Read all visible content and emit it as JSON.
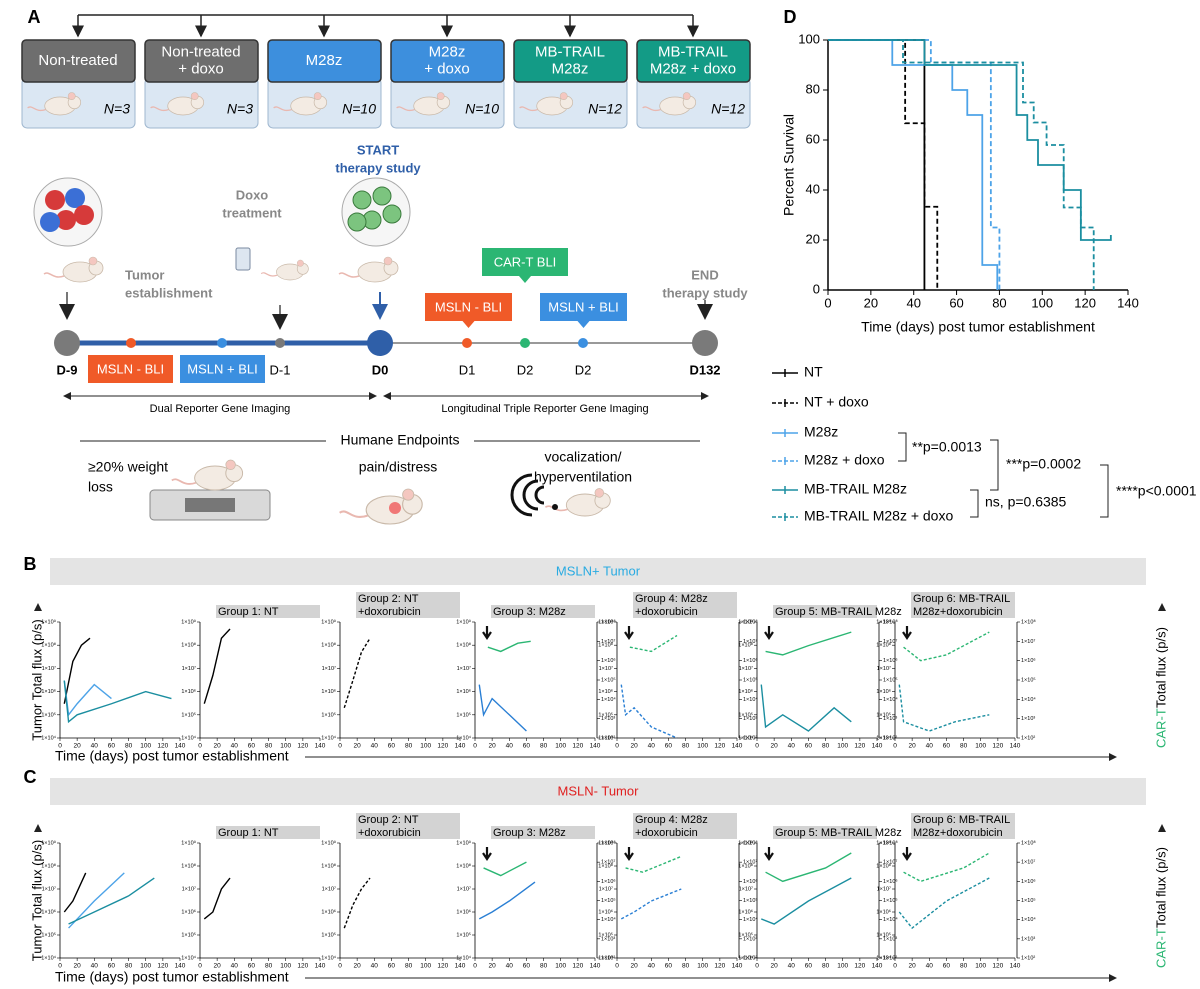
{
  "panel_labels": [
    "A",
    "B",
    "C",
    "D"
  ],
  "panel_a": {
    "groups": [
      {
        "name": [
          "Non-treated"
        ],
        "n": "N=3",
        "color": "#6e6e6e"
      },
      {
        "name": [
          "Non-treated",
          "+ doxo"
        ],
        "n": "N=3",
        "color": "#6e6e6e"
      },
      {
        "name": [
          "M28z"
        ],
        "n": "N=10",
        "color": "#3d8fdd"
      },
      {
        "name": [
          "M28z",
          "+ doxo"
        ],
        "n": "N=10",
        "color": "#3d8fdd"
      },
      {
        "name": [
          "MB-TRAIL",
          "M28z"
        ],
        "n": "N=12",
        "color": "#139b86"
      },
      {
        "name": [
          "MB-TRAIL",
          "M28z + doxo"
        ],
        "n": "N=12",
        "color": "#139b86"
      }
    ],
    "timepoints": [
      "D-9",
      "D-1",
      "D0",
      "D1",
      "D2",
      "D2",
      "D132"
    ],
    "events": {
      "tumor": [
        "Tumor",
        "establishment"
      ],
      "doxo": [
        "Doxo",
        "treatment"
      ],
      "start": [
        "START",
        "therapy study"
      ],
      "end": [
        "END",
        "therapy study"
      ]
    },
    "bli": {
      "msln_neg_pre": "MSLN - BLI",
      "msln_pos_pre": "MSLN + BLI",
      "cart": "CAR-T BLI",
      "msln_neg_post": "MSLN - BLI",
      "msln_pos_post": "MSLN + BLI"
    },
    "phases": [
      "Dual Reporter Gene Imaging",
      "Longitudinal Triple Reporter Gene Imaging"
    ],
    "endpoints": {
      "title": "Humane Endpoints",
      "items": [
        [
          "≥20% weight",
          "loss"
        ],
        [
          "pain/distress"
        ],
        [
          "vocalization/",
          "hyperventilation"
        ]
      ]
    }
  },
  "chart_data": [
    {
      "type": "step",
      "xlabel": "Time (days) post tumor establishment",
      "ylabel": "Percent Survival",
      "xlim": [
        0,
        140
      ],
      "xticks": [
        0,
        20,
        40,
        60,
        80,
        100,
        120,
        140
      ],
      "ylim": [
        0,
        100
      ],
      "yticks": [
        0,
        20,
        40,
        60,
        80,
        100
      ],
      "series": [
        {
          "name": "NT",
          "color": "#000000",
          "dash": false,
          "x": [
            0,
            45
          ],
          "values": [
            100,
            0
          ]
        },
        {
          "name": "NT + doxo",
          "color": "#000000",
          "dash": true,
          "x": [
            0,
            36,
            45,
            51
          ],
          "values": [
            100,
            66.7,
            33.3,
            0
          ]
        },
        {
          "name": "M28z",
          "color": "#4da3e8",
          "dash": false,
          "x": [
            0,
            30,
            58,
            65,
            72,
            79
          ],
          "values": [
            100,
            90,
            80,
            70,
            10,
            0
          ]
        },
        {
          "name": "M28z + doxo",
          "color": "#4da3e8",
          "dash": true,
          "x": [
            0,
            48,
            76,
            80
          ],
          "values": [
            100,
            91,
            25,
            0
          ]
        },
        {
          "name": "MB-TRAIL M28z",
          "color": "#1b8ea0",
          "dash": false,
          "x": [
            0,
            45,
            88,
            93,
            98,
            110,
            118,
            132
          ],
          "values": [
            100,
            90,
            70,
            60,
            50,
            40,
            20,
            22
          ]
        },
        {
          "name": "MB-TRAIL M28z + doxo",
          "color": "#1b8ea0",
          "dash": true,
          "x": [
            0,
            35,
            91,
            96,
            102,
            110,
            118,
            124
          ],
          "values": [
            100,
            91,
            75,
            67,
            58,
            33,
            25,
            0
          ]
        }
      ],
      "annotations": [
        "**p=0.0013",
        "***p=0.0002",
        "ns, p=0.6385",
        "****p<0.0001"
      ]
    },
    {
      "type": "small_multiples",
      "banner": "MSLN+ Tumor",
      "banner_color": "#29abe2",
      "ylabel": "Tumor Total flux (p/s)",
      "y2label": [
        "CAR-T",
        "Total flux (p/s)"
      ],
      "xlabel": "Time (days) post tumor establishment",
      "log_scale": true,
      "xlim": [
        0,
        140
      ],
      "xticks": [
        0,
        20,
        40,
        60,
        80,
        100,
        120,
        140
      ],
      "ylim": [
        10000,
        1000000000
      ],
      "yticks": [
        {
          "value": 10000,
          "label": "1×10⁴"
        },
        {
          "value": 100000,
          "label": "1×10⁵"
        },
        {
          "value": 1000000,
          "label": "1×10⁶"
        },
        {
          "value": 10000000,
          "label": "1×10⁷"
        },
        {
          "value": 100000000,
          "label": "1×10⁸"
        },
        {
          "value": 1000000000,
          "label": "1×10⁹"
        }
      ],
      "y2lim": [
        100,
        100000000
      ],
      "y2ticks": [
        {
          "value": 100,
          "label": "1×10²"
        },
        {
          "value": 1000,
          "label": "1×10³"
        },
        {
          "value": 10000,
          "label": "1×10⁴"
        },
        {
          "value": 100000,
          "label": "1×10⁵"
        },
        {
          "value": 1000000,
          "label": "1×10⁶"
        },
        {
          "value": 10000000,
          "label": "1×10⁷"
        },
        {
          "value": 100000000,
          "label": "1×10⁸"
        }
      ],
      "panels": [
        {
          "title": null,
          "series": [
            {
              "color": "#000000",
              "dash": false,
              "x": [
                5,
                15,
                25,
                35
              ],
              "values": [
                300000,
                20000000,
                100000000,
                200000000
              ]
            },
            {
              "color": "#4da3e8",
              "dash": false,
              "x": [
                5,
                10,
                20,
                40,
                60
              ],
              "values": [
                3000000,
                100000,
                300000,
                2000000,
                500000
              ]
            },
            {
              "color": "#1b8ea0",
              "dash": false,
              "x": [
                5,
                10,
                20,
                60,
                100,
                130
              ],
              "values": [
                3000000,
                50000,
                100000,
                300000,
                1000000,
                500000
              ]
            }
          ]
        },
        {
          "title": [
            "Group 1: NT"
          ],
          "series": [
            {
              "color": "#000000",
              "dash": false,
              "x": [
                5,
                15,
                25,
                35
              ],
              "values": [
                300000,
                5000000,
                200000000,
                500000000
              ]
            }
          ]
        },
        {
          "title": [
            "Group 2: NT",
            "+doxorubicin"
          ],
          "series": [
            {
              "color": "#000000",
              "dash": true,
              "x": [
                5,
                15,
                25,
                35
              ],
              "values": [
                200000,
                3000000,
                50000000,
                200000000
              ]
            }
          ]
        },
        {
          "title": [
            "Group 3: M28z"
          ],
          "series": [
            {
              "color": "#2a7fd4",
              "dash": false,
              "x": [
                5,
                10,
                20,
                40,
                60
              ],
              "values": [
                2000000,
                100000,
                500000,
                100000,
                20000
              ]
            },
            {
              "color": "#2bb673",
              "dash": false,
              "axis": "y2",
              "x": [
                15,
                30,
                50,
                65
              ],
              "values": [
                5000000,
                3000000,
                8000000,
                10000000
              ]
            }
          ]
        },
        {
          "title": [
            "Group 4: M28z",
            "+doxorubicin"
          ],
          "series": [
            {
              "color": "#2a7fd4",
              "dash": true,
              "x": [
                5,
                10,
                20,
                40,
                70
              ],
              "values": [
                2000000,
                100000,
                200000,
                30000,
                10000
              ]
            },
            {
              "color": "#2bb673",
              "dash": true,
              "axis": "y2",
              "x": [
                15,
                40,
                70
              ],
              "values": [
                5000000,
                3000000,
                20000000
              ]
            }
          ]
        },
        {
          "title": [
            "Group 5: MB-TRAIL M28z"
          ],
          "series": [
            {
              "color": "#1b8ea0",
              "dash": false,
              "x": [
                5,
                10,
                30,
                60,
                90,
                110
              ],
              "values": [
                2000000,
                30000,
                100000,
                20000,
                200000,
                50000
              ]
            },
            {
              "color": "#2bb673",
              "dash": false,
              "axis": "y2",
              "x": [
                10,
                30,
                60,
                110
              ],
              "values": [
                3000000,
                2000000,
                6000000,
                30000000
              ]
            }
          ]
        },
        {
          "title": [
            "Group 6: MB-TRAIL",
            "M28z+doxorubicin"
          ],
          "series": [
            {
              "color": "#1b8ea0",
              "dash": true,
              "x": [
                5,
                10,
                40,
                70,
                110
              ],
              "values": [
                2000000,
                50000,
                20000,
                50000,
                100000
              ]
            },
            {
              "color": "#2bb673",
              "dash": true,
              "axis": "y2",
              "x": [
                10,
                30,
                60,
                110
              ],
              "values": [
                5000000,
                1000000,
                2000000,
                30000000
              ]
            }
          ]
        }
      ]
    },
    {
      "type": "small_multiples",
      "banner": "MSLN- Tumor",
      "banner_color": "#e02020",
      "ylabel": "Tumor Total flux (p/s)",
      "y2label": [
        "CAR-T",
        "Total flux (p/s)"
      ],
      "xlabel": "Time (days) post tumor establishment",
      "log_scale": true,
      "xlim": [
        0,
        140
      ],
      "xticks": [
        0,
        20,
        40,
        60,
        80,
        100,
        120,
        140
      ],
      "ylim": [
        10000,
        1000000000
      ],
      "yticks": [
        {
          "value": 10000,
          "label": "1×10⁴"
        },
        {
          "value": 100000,
          "label": "1×10⁵"
        },
        {
          "value": 1000000,
          "label": "1×10⁶"
        },
        {
          "value": 10000000,
          "label": "1×10⁷"
        },
        {
          "value": 100000000,
          "label": "1×10⁸"
        },
        {
          "value": 1000000000,
          "label": "1×10⁹"
        }
      ],
      "y2lim": [
        100,
        100000000
      ],
      "y2ticks": [
        {
          "value": 100,
          "label": "1×10²"
        },
        {
          "value": 1000,
          "label": "1×10³"
        },
        {
          "value": 10000,
          "label": "1×10⁴"
        },
        {
          "value": 100000,
          "label": "1×10⁵"
        },
        {
          "value": 1000000,
          "label": "1×10⁶"
        },
        {
          "value": 10000000,
          "label": "1×10⁷"
        },
        {
          "value": 100000000,
          "label": "1×10⁸"
        }
      ],
      "panels": [
        {
          "title": null,
          "series": [
            {
              "color": "#000000",
              "dash": false,
              "x": [
                5,
                15,
                30
              ],
              "values": [
                1000000,
                3000000,
                50000000
              ]
            },
            {
              "color": "#4da3e8",
              "dash": false,
              "x": [
                10,
                40,
                75
              ],
              "values": [
                200000,
                3000000,
                50000000
              ]
            },
            {
              "color": "#1b8ea0",
              "dash": false,
              "x": [
                10,
                40,
                80,
                110
              ],
              "values": [
                300000,
                1000000,
                5000000,
                30000000
              ]
            }
          ]
        },
        {
          "title": [
            "Group 1: NT"
          ],
          "series": [
            {
              "color": "#000000",
              "dash": false,
              "x": [
                5,
                15,
                25,
                35
              ],
              "values": [
                500000,
                1000000,
                10000000,
                30000000
              ]
            }
          ]
        },
        {
          "title": [
            "Group 2: NT",
            "+doxorubicin"
          ],
          "series": [
            {
              "color": "#000000",
              "dash": true,
              "x": [
                5,
                15,
                25,
                35
              ],
              "values": [
                200000,
                2000000,
                10000000,
                30000000
              ]
            }
          ]
        },
        {
          "title": [
            "Group 3: M28z"
          ],
          "series": [
            {
              "color": "#2a7fd4",
              "dash": false,
              "x": [
                5,
                20,
                40,
                70
              ],
              "values": [
                500000,
                1000000,
                3000000,
                20000000
              ]
            },
            {
              "color": "#2bb673",
              "dash": false,
              "axis": "y2",
              "x": [
                10,
                30,
                60
              ],
              "values": [
                5000000,
                2000000,
                10000000
              ]
            }
          ]
        },
        {
          "title": [
            "Group 4: M28z",
            "+doxorubicin"
          ],
          "series": [
            {
              "color": "#2a7fd4",
              "dash": true,
              "x": [
                5,
                20,
                40,
                75
              ],
              "values": [
                500000,
                1000000,
                3000000,
                10000000
              ]
            },
            {
              "color": "#2bb673",
              "dash": true,
              "axis": "y2",
              "x": [
                10,
                30,
                75
              ],
              "values": [
                5000000,
                3000000,
                20000000
              ]
            }
          ]
        },
        {
          "title": [
            "Group 5: MB-TRAIL M28z"
          ],
          "series": [
            {
              "color": "#1b8ea0",
              "dash": false,
              "x": [
                5,
                20,
                60,
                110
              ],
              "values": [
                500000,
                300000,
                3000000,
                30000000
              ]
            },
            {
              "color": "#2bb673",
              "dash": false,
              "axis": "y2",
              "x": [
                10,
                30,
                80,
                110
              ],
              "values": [
                3000000,
                1000000,
                5000000,
                30000000
              ]
            }
          ]
        },
        {
          "title": [
            "Group 6: MB-TRAIL",
            "M28z+doxorubicin"
          ],
          "series": [
            {
              "color": "#1b8ea0",
              "dash": true,
              "x": [
                5,
                20,
                60,
                110
              ],
              "values": [
                1000000,
                200000,
                3000000,
                30000000
              ]
            },
            {
              "color": "#2bb673",
              "dash": true,
              "axis": "y2",
              "x": [
                10,
                30,
                80,
                110
              ],
              "values": [
                3000000,
                1000000,
                5000000,
                30000000
              ]
            }
          ]
        }
      ]
    }
  ]
}
